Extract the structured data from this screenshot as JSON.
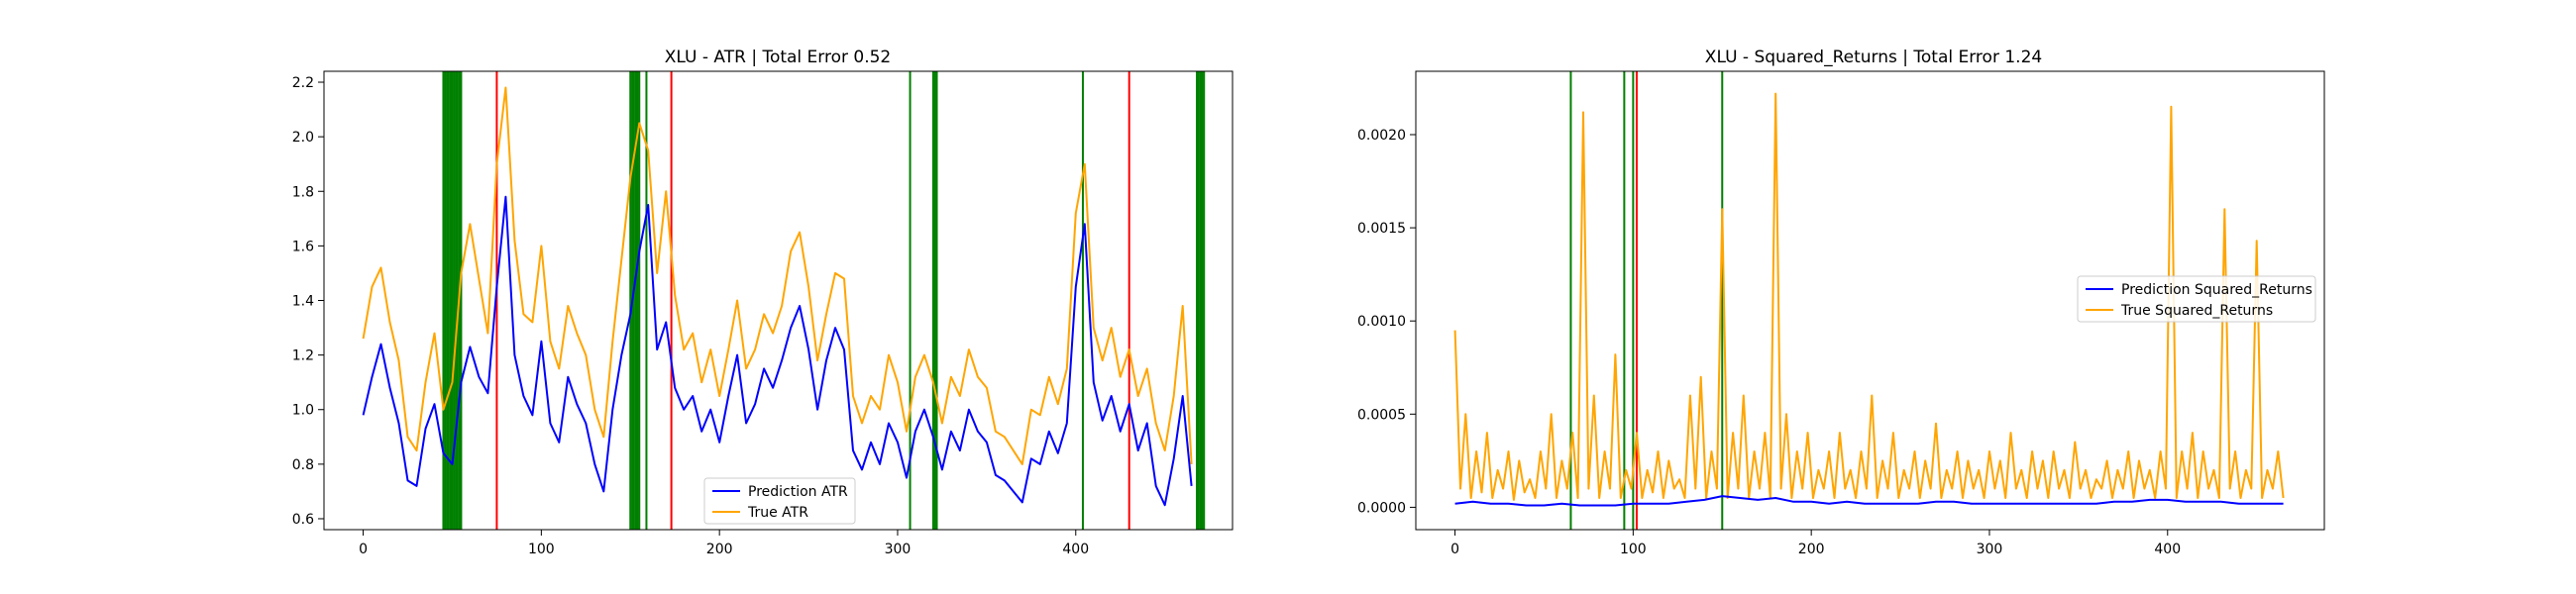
{
  "chart_data": [
    {
      "type": "line",
      "title": "XLU - ATR | Total Error 0.52",
      "xlabel": "",
      "ylabel": "",
      "xlim": [
        -22,
        488
      ],
      "ylim": [
        0.56,
        2.24
      ],
      "xticks": [
        0,
        100,
        200,
        300,
        400
      ],
      "yticks": [
        0.6,
        0.8,
        1.0,
        1.2,
        1.4,
        1.6,
        1.8,
        2.0,
        2.2
      ],
      "grid": false,
      "legend_position": "bottom-center",
      "series": [
        {
          "name": "Prediction ATR",
          "color": "#0000ff",
          "x": [
            0,
            5,
            10,
            15,
            20,
            25,
            30,
            35,
            40,
            45,
            50,
            55,
            60,
            65,
            70,
            75,
            80,
            85,
            90,
            95,
            100,
            105,
            110,
            115,
            120,
            125,
            130,
            135,
            140,
            145,
            150,
            155,
            160,
            165,
            170,
            175,
            180,
            185,
            190,
            195,
            200,
            205,
            210,
            215,
            220,
            225,
            230,
            235,
            240,
            245,
            250,
            255,
            260,
            265,
            270,
            275,
            280,
            285,
            290,
            295,
            300,
            305,
            310,
            315,
            320,
            325,
            330,
            335,
            340,
            345,
            350,
            355,
            360,
            365,
            370,
            375,
            380,
            385,
            390,
            395,
            400,
            405,
            410,
            415,
            420,
            425,
            430,
            435,
            440,
            445,
            450,
            455,
            460,
            465
          ],
          "values": [
            0.98,
            1.12,
            1.24,
            1.08,
            0.95,
            0.74,
            0.72,
            0.93,
            1.02,
            0.84,
            0.8,
            1.1,
            1.23,
            1.12,
            1.06,
            1.45,
            1.78,
            1.2,
            1.05,
            0.98,
            1.25,
            0.95,
            0.88,
            1.12,
            1.02,
            0.95,
            0.8,
            0.7,
            1.0,
            1.2,
            1.35,
            1.58,
            1.75,
            1.22,
            1.32,
            1.08,
            1.0,
            1.05,
            0.92,
            1.0,
            0.88,
            1.05,
            1.2,
            0.95,
            1.02,
            1.15,
            1.08,
            1.18,
            1.3,
            1.38,
            1.22,
            1.0,
            1.18,
            1.3,
            1.22,
            0.85,
            0.78,
            0.88,
            0.8,
            0.95,
            0.88,
            0.75,
            0.92,
            1.0,
            0.9,
            0.78,
            0.92,
            0.85,
            1.0,
            0.92,
            0.88,
            0.76,
            0.74,
            0.7,
            0.66,
            0.82,
            0.8,
            0.92,
            0.84,
            0.95,
            1.45,
            1.68,
            1.1,
            0.96,
            1.05,
            0.92,
            1.02,
            0.85,
            0.95,
            0.72,
            0.65,
            0.82,
            1.05,
            0.72
          ]
        },
        {
          "name": "True ATR",
          "color": "#ffa500",
          "x": [
            0,
            5,
            10,
            15,
            20,
            25,
            30,
            35,
            40,
            45,
            50,
            55,
            60,
            65,
            70,
            75,
            80,
            85,
            90,
            95,
            100,
            105,
            110,
            115,
            120,
            125,
            130,
            135,
            140,
            145,
            150,
            155,
            160,
            165,
            170,
            175,
            180,
            185,
            190,
            195,
            200,
            205,
            210,
            215,
            220,
            225,
            230,
            235,
            240,
            245,
            250,
            255,
            260,
            265,
            270,
            275,
            280,
            285,
            290,
            295,
            300,
            305,
            310,
            315,
            320,
            325,
            330,
            335,
            340,
            345,
            350,
            355,
            360,
            365,
            370,
            375,
            380,
            385,
            390,
            395,
            400,
            405,
            410,
            415,
            420,
            425,
            430,
            435,
            440,
            445,
            450,
            455,
            460,
            465
          ],
          "values": [
            1.26,
            1.45,
            1.52,
            1.32,
            1.18,
            0.9,
            0.85,
            1.1,
            1.28,
            1.0,
            1.1,
            1.5,
            1.68,
            1.48,
            1.28,
            1.9,
            2.18,
            1.62,
            1.35,
            1.32,
            1.6,
            1.25,
            1.15,
            1.38,
            1.28,
            1.2,
            1.0,
            0.9,
            1.25,
            1.55,
            1.85,
            2.05,
            1.95,
            1.5,
            1.8,
            1.42,
            1.22,
            1.28,
            1.1,
            1.22,
            1.05,
            1.22,
            1.4,
            1.15,
            1.22,
            1.35,
            1.28,
            1.38,
            1.58,
            1.65,
            1.45,
            1.18,
            1.35,
            1.5,
            1.48,
            1.05,
            0.95,
            1.05,
            1.0,
            1.2,
            1.1,
            0.92,
            1.12,
            1.2,
            1.1,
            0.95,
            1.12,
            1.05,
            1.22,
            1.12,
            1.08,
            0.92,
            0.9,
            0.85,
            0.8,
            1.0,
            0.98,
            1.12,
            1.02,
            1.15,
            1.72,
            1.9,
            1.3,
            1.18,
            1.3,
            1.12,
            1.22,
            1.05,
            1.15,
            0.95,
            0.85,
            1.05,
            1.38,
            0.8
          ]
        }
      ],
      "vlines": [
        {
          "x": 45,
          "color": "#008000"
        },
        {
          "x": 46,
          "color": "#008000"
        },
        {
          "x": 47,
          "color": "#008000"
        },
        {
          "x": 48,
          "color": "#008000"
        },
        {
          "x": 49,
          "color": "#008000"
        },
        {
          "x": 50,
          "color": "#008000"
        },
        {
          "x": 51,
          "color": "#008000"
        },
        {
          "x": 52,
          "color": "#008000"
        },
        {
          "x": 53,
          "color": "#008000"
        },
        {
          "x": 54,
          "color": "#008000"
        },
        {
          "x": 55,
          "color": "#008000"
        },
        {
          "x": 75,
          "color": "#ff0000"
        },
        {
          "x": 150,
          "color": "#008000"
        },
        {
          "x": 151,
          "color": "#008000"
        },
        {
          "x": 152,
          "color": "#008000"
        },
        {
          "x": 153,
          "color": "#008000"
        },
        {
          "x": 154,
          "color": "#008000"
        },
        {
          "x": 155,
          "color": "#008000"
        },
        {
          "x": 159,
          "color": "#008000"
        },
        {
          "x": 173,
          "color": "#ff0000"
        },
        {
          "x": 307,
          "color": "#008000"
        },
        {
          "x": 320,
          "color": "#008000"
        },
        {
          "x": 321,
          "color": "#008000"
        },
        {
          "x": 322,
          "color": "#008000"
        },
        {
          "x": 404,
          "color": "#008000"
        },
        {
          "x": 430,
          "color": "#ff0000"
        },
        {
          "x": 468,
          "color": "#008000"
        },
        {
          "x": 469,
          "color": "#008000"
        },
        {
          "x": 470,
          "color": "#008000"
        },
        {
          "x": 471,
          "color": "#008000"
        },
        {
          "x": 472,
          "color": "#008000"
        }
      ]
    },
    {
      "type": "line",
      "title": "XLU - Squared_Returns | Total Error 1.24",
      "xlabel": "",
      "ylabel": "",
      "xlim": [
        -22,
        488
      ],
      "ylim": [
        -0.00012,
        0.00234
      ],
      "xticks": [
        0,
        100,
        200,
        300,
        400
      ],
      "yticks": [
        0.0,
        0.0005,
        0.001,
        0.0015,
        0.002
      ],
      "ytick_labels": [
        "0.0000",
        "0.0005",
        "0.0010",
        "0.0015",
        "0.0020"
      ],
      "grid": false,
      "legend_position": "center-right",
      "series": [
        {
          "name": "Prediction Squared_Returns",
          "color": "#0000ff",
          "x": [
            0,
            10,
            20,
            30,
            40,
            50,
            60,
            70,
            80,
            90,
            100,
            110,
            120,
            130,
            140,
            150,
            160,
            170,
            180,
            190,
            200,
            210,
            220,
            230,
            240,
            250,
            260,
            270,
            280,
            290,
            300,
            310,
            320,
            330,
            340,
            350,
            360,
            370,
            380,
            390,
            400,
            410,
            420,
            430,
            440,
            450,
            460,
            465
          ],
          "values": [
            2e-05,
            3e-05,
            2e-05,
            2e-05,
            1e-05,
            1e-05,
            2e-05,
            1e-05,
            1e-05,
            1e-05,
            2e-05,
            2e-05,
            2e-05,
            3e-05,
            4e-05,
            6e-05,
            5e-05,
            4e-05,
            5e-05,
            3e-05,
            3e-05,
            2e-05,
            3e-05,
            2e-05,
            2e-05,
            2e-05,
            2e-05,
            3e-05,
            3e-05,
            2e-05,
            2e-05,
            2e-05,
            2e-05,
            2e-05,
            2e-05,
            2e-05,
            2e-05,
            3e-05,
            3e-05,
            4e-05,
            4e-05,
            3e-05,
            3e-05,
            3e-05,
            2e-05,
            2e-05,
            2e-05,
            2e-05
          ]
        },
        {
          "name": "True Squared_Returns",
          "color": "#ffa500",
          "x": [
            0,
            3,
            6,
            9,
            12,
            15,
            18,
            21,
            24,
            27,
            30,
            33,
            36,
            39,
            42,
            45,
            48,
            51,
            54,
            57,
            60,
            63,
            66,
            69,
            72,
            75,
            78,
            81,
            84,
            87,
            90,
            93,
            96,
            99,
            102,
            105,
            108,
            111,
            114,
            117,
            120,
            123,
            126,
            129,
            132,
            135,
            138,
            141,
            144,
            147,
            150,
            153,
            156,
            159,
            162,
            165,
            168,
            171,
            174,
            177,
            180,
            183,
            186,
            189,
            192,
            195,
            198,
            201,
            204,
            207,
            210,
            213,
            216,
            219,
            222,
            225,
            228,
            231,
            234,
            237,
            240,
            243,
            246,
            249,
            252,
            255,
            258,
            261,
            264,
            267,
            270,
            273,
            276,
            279,
            282,
            285,
            288,
            291,
            294,
            297,
            300,
            303,
            306,
            309,
            312,
            315,
            318,
            321,
            324,
            327,
            330,
            333,
            336,
            339,
            342,
            345,
            348,
            351,
            354,
            357,
            360,
            363,
            366,
            369,
            372,
            375,
            378,
            381,
            384,
            387,
            390,
            393,
            396,
            399,
            402,
            405,
            408,
            411,
            414,
            417,
            420,
            423,
            426,
            429,
            432,
            435,
            438,
            441,
            444,
            447,
            450,
            453,
            456,
            459,
            462,
            465
          ],
          "values": [
            0.00095,
            0.0001,
            0.0005,
            5e-05,
            0.0003,
            8e-05,
            0.0004,
            5e-05,
            0.0002,
            0.0001,
            0.0003,
            4e-05,
            0.00025,
            8e-05,
            0.00015,
            5e-05,
            0.0003,
            0.0001,
            0.0005,
            5e-05,
            0.00025,
            0.0001,
            0.0004,
            5e-05,
            0.00212,
            0.0001,
            0.0006,
            5e-05,
            0.0003,
            0.0001,
            0.00082,
            5e-05,
            0.0002,
            0.0001,
            0.0004,
            5e-05,
            0.0002,
            8e-05,
            0.0003,
            5e-05,
            0.00025,
            0.0001,
            0.00015,
            5e-05,
            0.0006,
            0.0001,
            0.0007,
            5e-05,
            0.0003,
            0.0001,
            0.0016,
            5e-05,
            0.0004,
            0.0001,
            0.0006,
            5e-05,
            0.0003,
            0.0001,
            0.0004,
            5e-05,
            0.00222,
            0.0001,
            0.0005,
            5e-05,
            0.0003,
            0.0001,
            0.0004,
            5e-05,
            0.0002,
            0.0001,
            0.0003,
            5e-05,
            0.0004,
            0.0001,
            0.0002,
            5e-05,
            0.0003,
            0.0001,
            0.0006,
            5e-05,
            0.00025,
            0.0001,
            0.0004,
            5e-05,
            0.0002,
            0.0001,
            0.0003,
            5e-05,
            0.00025,
            0.0001,
            0.00045,
            5e-05,
            0.0002,
            0.0001,
            0.0003,
            5e-05,
            0.00025,
            0.0001,
            0.0002,
            5e-05,
            0.0003,
            0.0001,
            0.00025,
            5e-05,
            0.0004,
            0.0001,
            0.0002,
            5e-05,
            0.0003,
            0.0001,
            0.00025,
            5e-05,
            0.0003,
            0.0001,
            0.0002,
            5e-05,
            0.00035,
            0.0001,
            0.0002,
            5e-05,
            0.00015,
            0.0001,
            0.00025,
            5e-05,
            0.0002,
            0.0001,
            0.0003,
            5e-05,
            0.00025,
            0.0001,
            0.0002,
            5e-05,
            0.0003,
            0.0001,
            0.00215,
            5e-05,
            0.0003,
            0.0001,
            0.0004,
            5e-05,
            0.0003,
            0.0001,
            0.0002,
            5e-05,
            0.0016,
            0.0001,
            0.0003,
            5e-05,
            0.0002,
            0.0001,
            0.00143,
            5e-05,
            0.0002,
            0.0001,
            0.0003,
            5e-05
          ]
        }
      ],
      "vlines": [
        {
          "x": 65,
          "color": "#008000"
        },
        {
          "x": 95,
          "color": "#008000"
        },
        {
          "x": 100,
          "color": "#008000"
        },
        {
          "x": 102,
          "color": "#ff0000"
        },
        {
          "x": 150,
          "color": "#008000"
        }
      ]
    }
  ]
}
